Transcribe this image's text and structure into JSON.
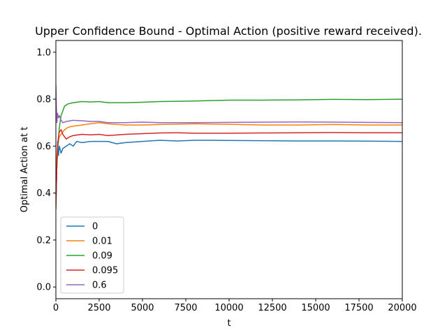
{
  "chart_data": {
    "type": "line",
    "title": "Upper Confidence Bound - Optimal Action (positive reward received).",
    "xlabel": "t",
    "ylabel": "Optimal Action at t",
    "xlim": [
      0,
      20000
    ],
    "ylim": [
      -0.05,
      1.05
    ],
    "xticks": [
      0,
      2500,
      5000,
      7500,
      10000,
      12500,
      15000,
      17500,
      20000
    ],
    "xtick_labels": [
      "0",
      "2500",
      "5000",
      "7500",
      "10000",
      "12500",
      "15000",
      "17500",
      "20000"
    ],
    "yticks": [
      0.0,
      0.2,
      0.4,
      0.6,
      0.8,
      1.0
    ],
    "ytick_labels": [
      "0.0",
      "0.2",
      "0.4",
      "0.6",
      "0.8",
      "1.0"
    ],
    "grid": false,
    "legend_position": "lower-left",
    "series": [
      {
        "name": "0",
        "color": "#1f77b4",
        "points": [
          [
            0,
            0.35
          ],
          [
            50,
            0.5
          ],
          [
            100,
            0.62
          ],
          [
            150,
            0.56
          ],
          [
            200,
            0.6
          ],
          [
            300,
            0.57
          ],
          [
            400,
            0.59
          ],
          [
            600,
            0.6
          ],
          [
            800,
            0.61
          ],
          [
            1000,
            0.6
          ],
          [
            1200,
            0.62
          ],
          [
            1500,
            0.615
          ],
          [
            2000,
            0.62
          ],
          [
            2500,
            0.62
          ],
          [
            3000,
            0.62
          ],
          [
            3500,
            0.61
          ],
          [
            4000,
            0.615
          ],
          [
            5000,
            0.62
          ],
          [
            6000,
            0.625
          ],
          [
            7000,
            0.622
          ],
          [
            8000,
            0.625
          ],
          [
            9000,
            0.625
          ],
          [
            10000,
            0.624
          ],
          [
            12000,
            0.623
          ],
          [
            14000,
            0.622
          ],
          [
            16000,
            0.622
          ],
          [
            18000,
            0.621
          ],
          [
            20000,
            0.62
          ]
        ]
      },
      {
        "name": "0.01",
        "color": "#ff7f0e",
        "points": [
          [
            0,
            0.4
          ],
          [
            50,
            0.55
          ],
          [
            100,
            0.6
          ],
          [
            200,
            0.64
          ],
          [
            300,
            0.65
          ],
          [
            500,
            0.67
          ],
          [
            700,
            0.68
          ],
          [
            1000,
            0.685
          ],
          [
            1500,
            0.69
          ],
          [
            2000,
            0.695
          ],
          [
            2500,
            0.7
          ],
          [
            3000,
            0.695
          ],
          [
            4000,
            0.69
          ],
          [
            5000,
            0.69
          ],
          [
            6000,
            0.692
          ],
          [
            8000,
            0.695
          ],
          [
            10000,
            0.693
          ],
          [
            12000,
            0.69
          ],
          [
            14000,
            0.69
          ],
          [
            16000,
            0.692
          ],
          [
            18000,
            0.69
          ],
          [
            20000,
            0.69
          ]
        ]
      },
      {
        "name": "0.09",
        "color": "#2ca02c",
        "points": [
          [
            0,
            0.35
          ],
          [
            50,
            0.5
          ],
          [
            100,
            0.58
          ],
          [
            200,
            0.68
          ],
          [
            300,
            0.73
          ],
          [
            400,
            0.75
          ],
          [
            500,
            0.77
          ],
          [
            700,
            0.78
          ],
          [
            1000,
            0.785
          ],
          [
            1500,
            0.79
          ],
          [
            2000,
            0.788
          ],
          [
            2500,
            0.79
          ],
          [
            3000,
            0.785
          ],
          [
            4000,
            0.785
          ],
          [
            5000,
            0.787
          ],
          [
            6000,
            0.79
          ],
          [
            8000,
            0.792
          ],
          [
            10000,
            0.796
          ],
          [
            12000,
            0.796
          ],
          [
            14000,
            0.797
          ],
          [
            16000,
            0.799
          ],
          [
            18000,
            0.798
          ],
          [
            20000,
            0.8
          ]
        ]
      },
      {
        "name": "0.095",
        "color": "#d62728",
        "points": [
          [
            0,
            0.33
          ],
          [
            50,
            0.5
          ],
          [
            100,
            0.6
          ],
          [
            150,
            0.64
          ],
          [
            200,
            0.66
          ],
          [
            300,
            0.67
          ],
          [
            400,
            0.65
          ],
          [
            600,
            0.63
          ],
          [
            800,
            0.64
          ],
          [
            1000,
            0.645
          ],
          [
            1500,
            0.65
          ],
          [
            2000,
            0.648
          ],
          [
            2500,
            0.65
          ],
          [
            3000,
            0.645
          ],
          [
            4000,
            0.65
          ],
          [
            5000,
            0.653
          ],
          [
            6000,
            0.656
          ],
          [
            7000,
            0.657
          ],
          [
            8000,
            0.655
          ],
          [
            10000,
            0.655
          ],
          [
            12000,
            0.656
          ],
          [
            14000,
            0.657
          ],
          [
            16000,
            0.658
          ],
          [
            18000,
            0.657
          ],
          [
            20000,
            0.657
          ]
        ]
      },
      {
        "name": "0.6",
        "color": "#9467bd",
        "points": [
          [
            0,
            0.86
          ],
          [
            30,
            0.76
          ],
          [
            60,
            0.7
          ],
          [
            100,
            0.74
          ],
          [
            150,
            0.72
          ],
          [
            200,
            0.73
          ],
          [
            300,
            0.71
          ],
          [
            400,
            0.7
          ],
          [
            600,
            0.705
          ],
          [
            1000,
            0.71
          ],
          [
            1500,
            0.708
          ],
          [
            2000,
            0.705
          ],
          [
            2500,
            0.705
          ],
          [
            3000,
            0.7
          ],
          [
            4000,
            0.7
          ],
          [
            5000,
            0.702
          ],
          [
            6000,
            0.7
          ],
          [
            8000,
            0.7
          ],
          [
            10000,
            0.701
          ],
          [
            12000,
            0.702
          ],
          [
            14000,
            0.703
          ],
          [
            16000,
            0.702
          ],
          [
            18000,
            0.701
          ],
          [
            20000,
            0.7
          ]
        ]
      }
    ]
  }
}
